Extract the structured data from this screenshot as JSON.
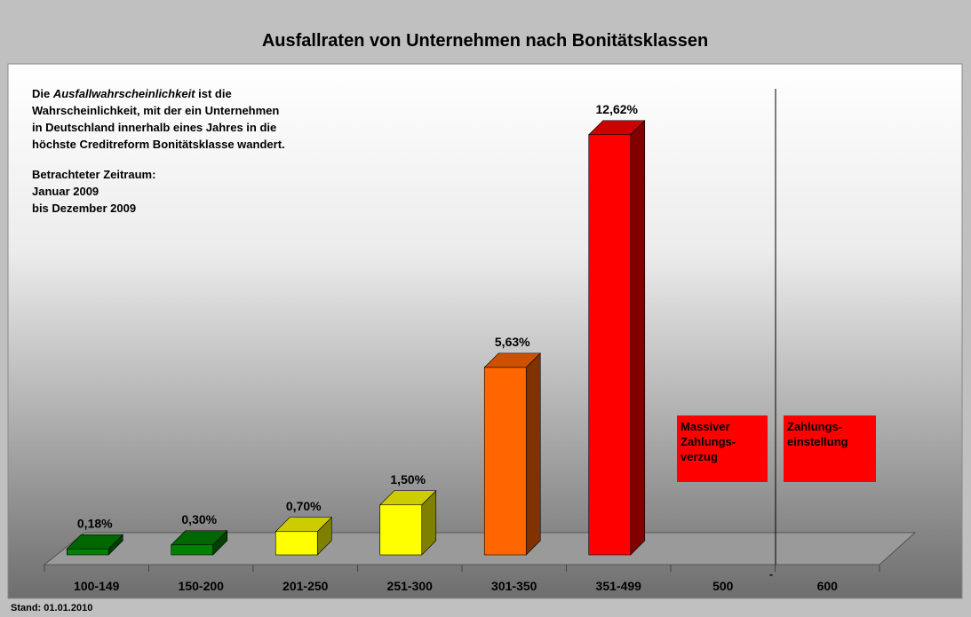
{
  "chart_data": {
    "type": "bar3d",
    "title": "Ausfallraten von Unternehmen nach Bonitätsklassen",
    "categories": [
      "100-149",
      "150-200",
      "201-250",
      "251-300",
      "301-350",
      "351-499",
      "500",
      "600"
    ],
    "values": [
      0.18,
      0.3,
      0.7,
      1.5,
      5.63,
      12.62,
      null,
      null
    ],
    "value_labels": [
      "0,18%",
      "0,30%",
      "0,70%",
      "1,50%",
      "5,63%",
      "12,62%",
      null,
      null
    ],
    "colors": [
      "#008000",
      "#008000",
      "#ffff00",
      "#ffff00",
      "#ff6600",
      "#ff0000",
      null,
      null
    ],
    "description": [
      [
        "Die ",
        "Ausfallwahrscheinlichkeit",
        " ist die"
      ],
      [
        "Wahrscheinlichkeit, mit der ein Unternehmen"
      ],
      [
        "in Deutschland innerhalb eines Jahres in die"
      ],
      [
        "höchste Creditreform Bonitätsklasse wandert."
      ],
      [
        "Betrachteter Zeitraum:"
      ],
      [
        "Januar 2009"
      ],
      [
        "bis Dezember 2009"
      ]
    ],
    "boxes": [
      [
        "Massiver",
        "Zahlungs-",
        "verzug"
      ],
      [
        "Zahlungs-",
        "einstellung"
      ]
    ],
    "marker": "-",
    "footer": "Stand: 01.01.2010"
  }
}
